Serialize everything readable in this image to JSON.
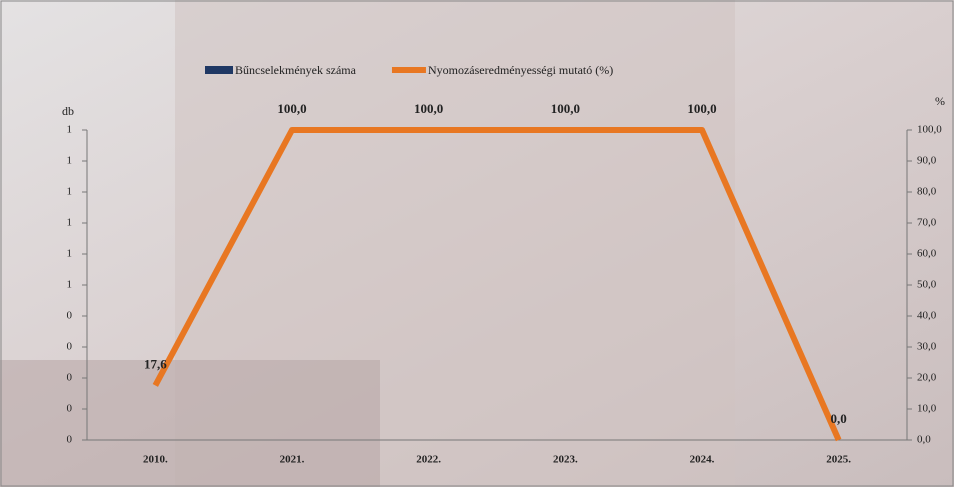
{
  "chart_data": {
    "type": "combo",
    "categories": [
      "2010.",
      "2021.",
      "2022.",
      "2023.",
      "2024.",
      "2025."
    ],
    "y_label": "db",
    "y2_label": "%",
    "series": [
      {
        "name": "Bűncselekmények száma",
        "color": "#1f3864",
        "type": "bar",
        "values": [
          0,
          0,
          0,
          0,
          0,
          0
        ]
      },
      {
        "name": "Nyomozáseredményességi mutató (%)",
        "color": "#e87722",
        "type": "line",
        "axis": "y2",
        "values": [
          17.6,
          100,
          100,
          100,
          100,
          0
        ],
        "value_labels": [
          "17,6",
          "100,0",
          "100,0",
          "100,0",
          "100,0",
          "0,0"
        ]
      }
    ],
    "ylim": [
      0,
      1
    ],
    "yticks": [
      0,
      {
        "value": 0.1,
        "label": "0"
      },
      {
        "value": 0.2,
        "label": "0"
      },
      {
        "value": 0.3,
        "label": "0"
      },
      {
        "value": 0.4,
        "label": "0"
      },
      {
        "value": 0.5,
        "label": "1"
      },
      {
        "value": 0.6,
        "label": "1"
      },
      {
        "value": 0.7,
        "label": "1"
      },
      {
        "value": 0.8,
        "label": "1"
      },
      {
        "value": 0.9,
        "label": "1"
      },
      1
    ],
    "y2lim": [
      0,
      100
    ],
    "y2ticks": [
      {
        "value": 0,
        "label": "0,0"
      },
      {
        "value": 10,
        "label": "10,0"
      },
      {
        "value": 20,
        "label": "20,0"
      },
      {
        "value": 30,
        "label": "30,0"
      },
      {
        "value": 40,
        "label": "40,0"
      },
      {
        "value": 50,
        "label": "50,0"
      },
      {
        "value": 60,
        "label": "60,0"
      },
      {
        "value": 70,
        "label": "70,0"
      },
      {
        "value": 80,
        "label": "80,0"
      },
      {
        "value": 90,
        "label": "90,0"
      },
      {
        "value": 100,
        "label": "100,0"
      }
    ],
    "legend": "top",
    "grid": false
  }
}
